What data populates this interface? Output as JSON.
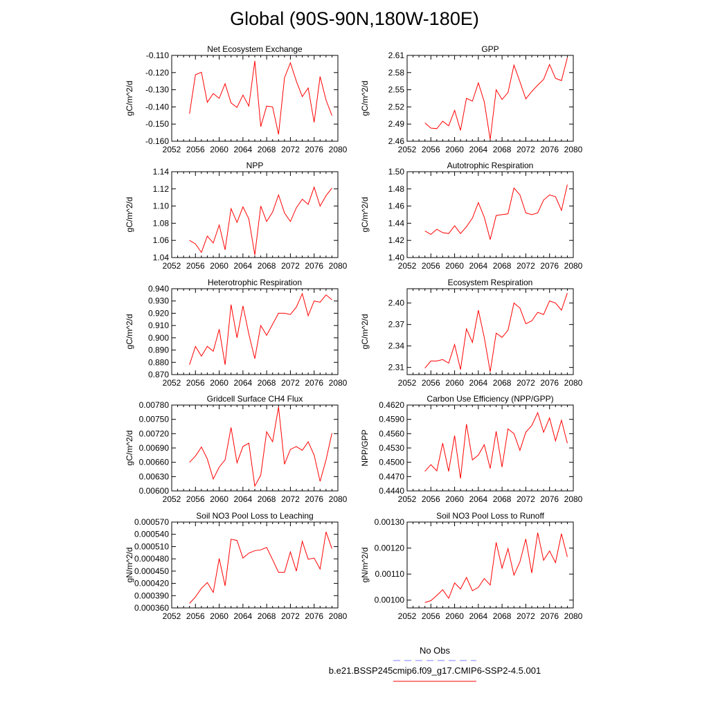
{
  "title": "Global (90S-90N,180W-180E)",
  "chart_data": [
    {
      "type": "line",
      "title": "Net Ecosystem Exchange",
      "ylabel": "gC/m^2/d",
      "ylim": [
        -0.16,
        -0.11
      ],
      "yticks": [
        "-0.160",
        "-0.150",
        "-0.140",
        "-0.130",
        "-0.120",
        "-0.110"
      ],
      "xlim": [
        2052,
        2080
      ],
      "xticks": [
        "2052",
        "2056",
        "2060",
        "2064",
        "2068",
        "2072",
        "2076",
        "2080"
      ],
      "series": [
        {
          "color": "#ff0000",
          "x": [
            2055,
            2056,
            2057,
            2058,
            2059,
            2060,
            2061,
            2062,
            2063,
            2064,
            2065,
            2066,
            2067,
            2068,
            2069,
            2070,
            2071,
            2072,
            2073,
            2074,
            2075,
            2076,
            2077,
            2078,
            2079
          ],
          "values": [
            -0.144,
            -0.1213,
            -0.1198,
            -0.1373,
            -0.1322,
            -0.135,
            -0.1265,
            -0.1377,
            -0.1403,
            -0.1331,
            -0.1395,
            -0.1132,
            -0.1515,
            -0.1395,
            -0.14,
            -0.156,
            -0.123,
            -0.1143,
            -0.125,
            -0.134,
            -0.129,
            -0.149,
            -0.1223,
            -0.136,
            -0.145
          ]
        }
      ]
    },
    {
      "type": "line",
      "title": "GPP",
      "ylabel": "gC/m^2/d",
      "ylim": [
        2.46,
        2.61
      ],
      "yticks": [
        "2.46",
        "2.49",
        "2.52",
        "2.55",
        "2.58",
        "2.61"
      ],
      "xlim": [
        2052,
        2080
      ],
      "xticks": [
        "2052",
        "2056",
        "2060",
        "2064",
        "2068",
        "2072",
        "2076",
        "2080"
      ],
      "series": [
        {
          "color": "#ff0000",
          "x": [
            2055,
            2056,
            2057,
            2058,
            2059,
            2060,
            2061,
            2062,
            2063,
            2064,
            2065,
            2066,
            2067,
            2068,
            2069,
            2070,
            2071,
            2072,
            2073,
            2074,
            2075,
            2076,
            2077,
            2078,
            2079
          ],
          "values": [
            2.492,
            2.483,
            2.482,
            2.495,
            2.487,
            2.514,
            2.479,
            2.535,
            2.53,
            2.562,
            2.529,
            2.463,
            2.55,
            2.533,
            2.545,
            2.593,
            2.564,
            2.534,
            2.547,
            2.558,
            2.568,
            2.594,
            2.57,
            2.566,
            2.606
          ]
        }
      ]
    },
    {
      "type": "line",
      "title": "NPP",
      "ylabel": "gC/m^2/d",
      "ylim": [
        1.04,
        1.14
      ],
      "yticks": [
        "1.04",
        "1.06",
        "1.08",
        "1.10",
        "1.12",
        "1.14"
      ],
      "xlim": [
        2052,
        2080
      ],
      "xticks": [
        "2052",
        "2056",
        "2060",
        "2064",
        "2068",
        "2072",
        "2076",
        "2080"
      ],
      "series": [
        {
          "color": "#ff0000",
          "x": [
            2055,
            2056,
            2057,
            2058,
            2059,
            2060,
            2061,
            2062,
            2063,
            2064,
            2065,
            2066,
            2067,
            2068,
            2069,
            2070,
            2071,
            2072,
            2073,
            2074,
            2075,
            2076,
            2077,
            2078,
            2079
          ],
          "values": [
            1.06,
            1.056,
            1.046,
            1.065,
            1.057,
            1.078,
            1.049,
            1.097,
            1.081,
            1.099,
            1.085,
            1.043,
            1.1,
            1.082,
            1.093,
            1.113,
            1.092,
            1.082,
            1.098,
            1.108,
            1.102,
            1.122,
            1.1,
            1.112,
            1.121
          ]
        }
      ]
    },
    {
      "type": "line",
      "title": "Autotrophic Respiration",
      "ylabel": "gC/m^2/d",
      "ylim": [
        1.4,
        1.5
      ],
      "yticks": [
        "1.40",
        "1.42",
        "1.44",
        "1.46",
        "1.48",
        "1.50"
      ],
      "xlim": [
        2052,
        2080
      ],
      "xticks": [
        "2052",
        "2056",
        "2060",
        "2064",
        "2068",
        "2072",
        "2076",
        "2080"
      ],
      "series": [
        {
          "color": "#ff0000",
          "x": [
            2055,
            2056,
            2057,
            2058,
            2059,
            2060,
            2061,
            2062,
            2063,
            2064,
            2065,
            2066,
            2067,
            2068,
            2069,
            2070,
            2071,
            2072,
            2073,
            2074,
            2075,
            2076,
            2077,
            2078,
            2079
          ],
          "values": [
            1.431,
            1.427,
            1.433,
            1.429,
            1.428,
            1.437,
            1.428,
            1.436,
            1.446,
            1.464,
            1.447,
            1.421,
            1.449,
            1.45,
            1.451,
            1.481,
            1.473,
            1.452,
            1.45,
            1.452,
            1.467,
            1.473,
            1.471,
            1.455,
            1.485
          ]
        }
      ]
    },
    {
      "type": "line",
      "title": "Heterotrophic Respiration",
      "ylabel": "gC/m^2/d",
      "ylim": [
        0.87,
        0.94
      ],
      "yticks": [
        "0.870",
        "0.880",
        "0.890",
        "0.900",
        "0.910",
        "0.920",
        "0.930",
        "0.940"
      ],
      "xlim": [
        2052,
        2080
      ],
      "xticks": [
        "2052",
        "2056",
        "2060",
        "2064",
        "2068",
        "2072",
        "2076",
        "2080"
      ],
      "series": [
        {
          "color": "#ff0000",
          "x": [
            2055,
            2056,
            2057,
            2058,
            2059,
            2060,
            2061,
            2062,
            2063,
            2064,
            2065,
            2066,
            2067,
            2068,
            2069,
            2070,
            2071,
            2072,
            2073,
            2074,
            2075,
            2076,
            2077,
            2078,
            2079
          ],
          "values": [
            0.878,
            0.893,
            0.885,
            0.893,
            0.889,
            0.907,
            0.878,
            0.927,
            0.9,
            0.926,
            0.903,
            0.883,
            0.91,
            0.902,
            0.911,
            0.92,
            0.92,
            0.919,
            0.925,
            0.936,
            0.918,
            0.93,
            0.929,
            0.935,
            0.931
          ]
        }
      ]
    },
    {
      "type": "line",
      "title": "Ecosystem Respiration",
      "ylabel": "gC/m^2/d",
      "ylim": [
        2.3,
        2.42
      ],
      "yticks": [
        "2.31",
        "2.34",
        "2.37",
        "2.40"
      ],
      "xlim": [
        2052,
        2080
      ],
      "xticks": [
        "2052",
        "2056",
        "2060",
        "2064",
        "2068",
        "2072",
        "2076",
        "2080"
      ],
      "series": [
        {
          "color": "#ff0000",
          "x": [
            2055,
            2056,
            2057,
            2058,
            2059,
            2060,
            2061,
            2062,
            2063,
            2064,
            2065,
            2066,
            2067,
            2068,
            2069,
            2070,
            2071,
            2072,
            2073,
            2074,
            2075,
            2076,
            2077,
            2078,
            2079
          ],
          "values": [
            2.309,
            2.319,
            2.319,
            2.321,
            2.316,
            2.342,
            2.307,
            2.364,
            2.345,
            2.39,
            2.352,
            2.304,
            2.358,
            2.352,
            2.362,
            2.4,
            2.393,
            2.371,
            2.375,
            2.387,
            2.384,
            2.403,
            2.4,
            2.39,
            2.414
          ]
        }
      ]
    },
    {
      "type": "line",
      "title": "Gridcell Surface CH4 Flux",
      "ylabel": "gC/m^2/d",
      "ylim": [
        0.006,
        0.0078
      ],
      "yticks": [
        "0.00600",
        "0.00630",
        "0.00660",
        "0.00690",
        "0.00720",
        "0.00750",
        "0.00780"
      ],
      "xlim": [
        2052,
        2080
      ],
      "xticks": [
        "2052",
        "2056",
        "2060",
        "2064",
        "2068",
        "2072",
        "2076",
        "2080"
      ],
      "series": [
        {
          "color": "#ff0000",
          "x": [
            2055,
            2056,
            2057,
            2058,
            2059,
            2060,
            2061,
            2062,
            2063,
            2064,
            2065,
            2066,
            2067,
            2068,
            2069,
            2070,
            2071,
            2072,
            2073,
            2074,
            2075,
            2076,
            2077,
            2078,
            2079
          ],
          "values": [
            0.0066,
            0.00673,
            0.00692,
            0.00667,
            0.00625,
            0.0065,
            0.00665,
            0.00733,
            0.00659,
            0.00693,
            0.007,
            0.0061,
            0.00633,
            0.00724,
            0.00703,
            0.00776,
            0.00656,
            0.00687,
            0.00693,
            0.00685,
            0.00703,
            0.00675,
            0.0062,
            0.00665,
            0.00721
          ]
        }
      ]
    },
    {
      "type": "line",
      "title": "Carbon Use Efficiency (NPP/GPP)",
      "ylabel": "NPP/GPP",
      "ylim": [
        0.444,
        0.462
      ],
      "yticks": [
        "0.4440",
        "0.4470",
        "0.4500",
        "0.4530",
        "0.4560",
        "0.4590",
        "0.4620"
      ],
      "xlim": [
        2052,
        2080
      ],
      "xticks": [
        "2052",
        "2056",
        "2060",
        "2064",
        "2068",
        "2072",
        "2076",
        "2080"
      ],
      "series": [
        {
          "color": "#ff0000",
          "x": [
            2055,
            2056,
            2057,
            2058,
            2059,
            2060,
            2061,
            2062,
            2063,
            2064,
            2065,
            2066,
            2067,
            2068,
            2069,
            2070,
            2071,
            2072,
            2073,
            2074,
            2075,
            2076,
            2077,
            2078,
            2079
          ],
          "values": [
            0.4481,
            0.4495,
            0.4482,
            0.454,
            0.4481,
            0.4556,
            0.4466,
            0.458,
            0.4505,
            0.4515,
            0.4537,
            0.4487,
            0.4565,
            0.449,
            0.457,
            0.456,
            0.4525,
            0.4563,
            0.4577,
            0.4604,
            0.4563,
            0.4593,
            0.4545,
            0.4588,
            0.454
          ]
        }
      ]
    },
    {
      "type": "line",
      "title": "Soil NO3 Pool Loss to Leaching",
      "ylabel": "gN/m^2/d",
      "ylim": [
        0.00036,
        0.00057
      ],
      "yticks": [
        "0.000360",
        "0.000390",
        "0.000420",
        "0.000450",
        "0.000480",
        "0.000510",
        "0.000540",
        "0.000570"
      ],
      "xlim": [
        2052,
        2080
      ],
      "xticks": [
        "2052",
        "2056",
        "2060",
        "2064",
        "2068",
        "2072",
        "2076",
        "2080"
      ],
      "series": [
        {
          "color": "#ff0000",
          "x": [
            2055,
            2056,
            2057,
            2058,
            2059,
            2060,
            2061,
            2062,
            2063,
            2064,
            2065,
            2066,
            2067,
            2068,
            2069,
            2070,
            2071,
            2072,
            2073,
            2074,
            2075,
            2076,
            2077,
            2078,
            2079
          ],
          "values": [
            0.000371,
            0.000387,
            0.000408,
            0.000422,
            0.000398,
            0.000481,
            0.000414,
            0.000528,
            0.000525,
            0.000482,
            0.000494,
            0.0005,
            0.000502,
            0.000508,
            0.000478,
            0.000447,
            0.000447,
            0.000497,
            0.00045,
            0.000523,
            0.000479,
            0.000482,
            0.000455,
            0.000546,
            0.000505
          ]
        }
      ]
    },
    {
      "type": "line",
      "title": "Soil NO3 Pool Loss to Runoff",
      "ylabel": "gN/m^2/d",
      "ylim": [
        0.00097,
        0.0013
      ],
      "yticks": [
        "0.00100",
        "0.00110",
        "0.00120",
        "0.00130"
      ],
      "xlim": [
        2052,
        2080
      ],
      "xticks": [
        "2052",
        "2056",
        "2060",
        "2064",
        "2068",
        "2072",
        "2076",
        "2080"
      ],
      "series": [
        {
          "color": "#ff0000",
          "x": [
            2055,
            2056,
            2057,
            2058,
            2059,
            2060,
            2061,
            2062,
            2063,
            2064,
            2065,
            2066,
            2067,
            2068,
            2069,
            2070,
            2071,
            2072,
            2073,
            2074,
            2075,
            2076,
            2077,
            2078,
            2079
          ],
          "values": [
            0.000991,
            0.000998,
            0.001018,
            0.00104,
            0.001007,
            0.001066,
            0.001043,
            0.001087,
            0.001036,
            0.001049,
            0.001083,
            0.001058,
            0.001222,
            0.001123,
            0.001198,
            0.001096,
            0.001147,
            0.001235,
            0.001104,
            0.001259,
            0.001153,
            0.001189,
            0.001144,
            0.001255,
            0.001166
          ]
        }
      ]
    }
  ],
  "legend": {
    "items": [
      {
        "label": "No Obs",
        "color": "#7f7fff",
        "style": "dashed"
      },
      {
        "label": "b.e21.BSSP245cmip6.f09_g17.CMIP6-SSP2-4.5.001",
        "color": "#ff0000",
        "style": "solid"
      }
    ]
  }
}
